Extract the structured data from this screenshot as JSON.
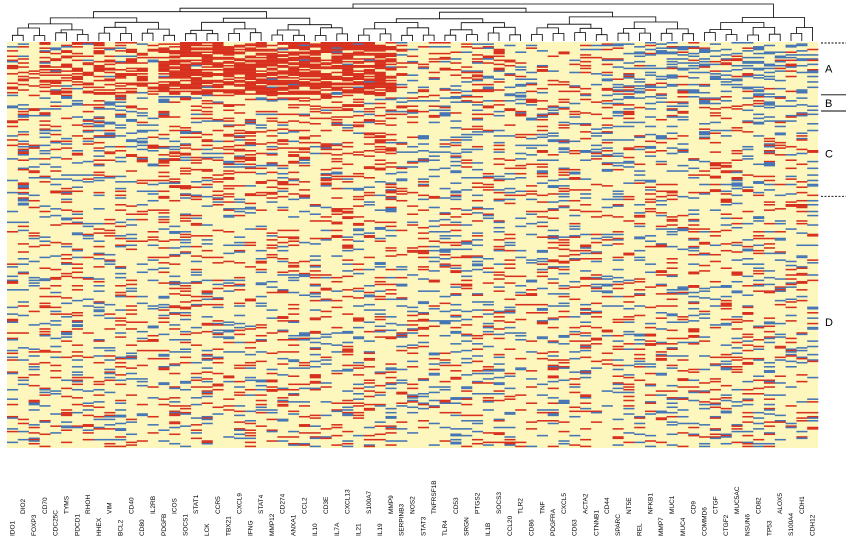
{
  "chart_data": {
    "type": "heatmap",
    "title": "",
    "xlabel": "",
    "ylabel": "",
    "column_dendrogram": true,
    "row_count_approx": 400,
    "colors": {
      "high": "#d7301f",
      "low": "#4575b4",
      "neutral": "#fdf7bd",
      "dendrogram": "#000000"
    },
    "genes": [
      "IDO1",
      "DIO2",
      "FOXP3",
      "CD70",
      "CDC25C",
      "TYMS",
      "PDCD1",
      "RHOH",
      "HHEX",
      "VIM",
      "BCL2",
      "CD40",
      "CD80",
      "IL2RB",
      "PDGFB",
      "ICOS",
      "SOCS1",
      "STAT1",
      "LCK",
      "CCR5",
      "TBX21",
      "CXCL9",
      "IFNG",
      "STAT4",
      "MMP12",
      "CD274",
      "ANXA1",
      "CCL2",
      "IL10",
      "CD3E",
      "IL7A",
      "CXCL13",
      "IL21",
      "S100A7",
      "IL19",
      "MMP9",
      "SERPINB3",
      "NOS2",
      "STAT3",
      "TNFRSF1B",
      "TLR4",
      "CD53",
      "SRGN",
      "PTGS2",
      "IL1B",
      "SOCS3",
      "CCL20",
      "TLR2",
      "CD86",
      "TNF",
      "PDGFRA",
      "CXCL5",
      "CD63",
      "ACTA2",
      "CTNNB1",
      "CD44",
      "SPARC",
      "NT5E",
      "REL",
      "NFKB1",
      "MMP7",
      "MUC1",
      "MUC4",
      "CD9",
      "COMMD6",
      "CTGF",
      "CTGF2",
      "MUC5AC",
      "NSUN6",
      "CD82",
      "TP53",
      "ALOX5",
      "S100A4",
      "CDH1",
      "CDH12"
    ],
    "cluster_labels": [
      "A",
      "B",
      "C",
      "D"
    ],
    "cluster_bands": [
      {
        "label": "A",
        "start": 0.0,
        "end": 0.13
      },
      {
        "label": "B",
        "start": 0.13,
        "end": 0.17
      },
      {
        "label": "C",
        "start": 0.17,
        "end": 0.38
      },
      {
        "label": "D",
        "start": 0.38,
        "end": 1.0
      }
    ],
    "hot_block": {
      "cluster": "A",
      "genes_from": "PDGFB",
      "genes_to": "MMP9"
    }
  }
}
